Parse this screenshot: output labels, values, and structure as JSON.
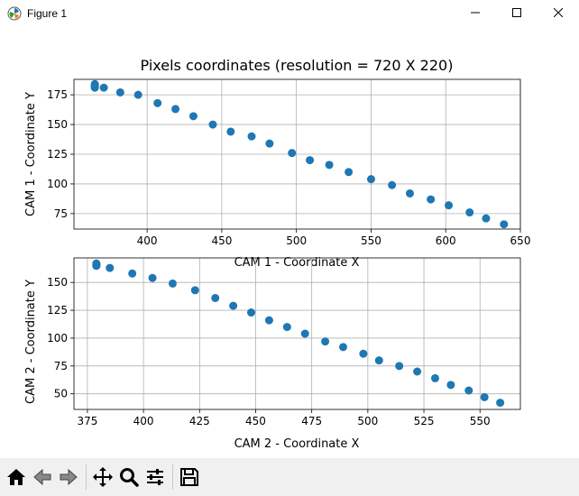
{
  "window": {
    "title": "Figure 1"
  },
  "toolbar": {
    "buttons": [
      {
        "name": "home",
        "icon": "home-icon"
      },
      {
        "name": "back",
        "icon": "back-arrow-icon"
      },
      {
        "name": "forward",
        "icon": "forward-arrow-icon"
      },
      {
        "name": "pan",
        "icon": "pan-move-icon"
      },
      {
        "name": "zoom",
        "icon": "zoom-magnifier-icon"
      },
      {
        "name": "configure",
        "icon": "subplots-config-icon"
      },
      {
        "name": "save",
        "icon": "save-floppy-icon"
      }
    ]
  },
  "colors": {
    "marker": "#1f77b4",
    "grid": "#b0b0b0"
  },
  "chart_data": [
    {
      "type": "scatter",
      "title": "Pixels coordinates (resolution = 720 X 220)",
      "xlabel": "CAM 1 - Coordinate X",
      "ylabel": "CAM 1 - Coordinate Y",
      "xlim": [
        351,
        650
      ],
      "ylim": [
        62,
        188
      ],
      "xticks": [
        400,
        450,
        500,
        550,
        600,
        650
      ],
      "yticks": [
        75,
        100,
        125,
        150,
        175
      ],
      "grid": true,
      "x": [
        365,
        365,
        365,
        365,
        365,
        371,
        382,
        394,
        407,
        419,
        431,
        444,
        456,
        470,
        482,
        497,
        509,
        522,
        535,
        550,
        564,
        576,
        590,
        602,
        616,
        627,
        639
      ],
      "y": [
        184,
        183,
        182,
        182,
        181,
        181,
        177,
        175,
        168,
        163,
        157,
        150,
        144,
        140,
        134,
        126,
        120,
        116,
        110,
        104,
        99,
        92,
        87,
        82,
        76,
        71,
        66
      ]
    },
    {
      "type": "scatter",
      "title": "",
      "xlabel": "CAM 2 - Coordinate X",
      "ylabel": "CAM 2 - Coordinate Y",
      "xlim": [
        369,
        568
      ],
      "ylim": [
        36,
        172
      ],
      "xticks": [
        375,
        400,
        425,
        450,
        475,
        500,
        525,
        550
      ],
      "yticks": [
        50,
        75,
        100,
        125,
        150
      ],
      "grid": true,
      "x": [
        379,
        379,
        379,
        379,
        379,
        385,
        395,
        404,
        413,
        423,
        432,
        440,
        448,
        456,
        464,
        472,
        481,
        489,
        498,
        505,
        514,
        522,
        530,
        537,
        545,
        552,
        559
      ],
      "y": [
        167,
        166,
        166,
        165,
        165,
        163,
        158,
        154,
        149,
        143,
        136,
        129,
        123,
        116,
        110,
        104,
        97,
        92,
        86,
        80,
        75,
        70,
        64,
        58,
        53,
        47,
        42
      ]
    }
  ]
}
